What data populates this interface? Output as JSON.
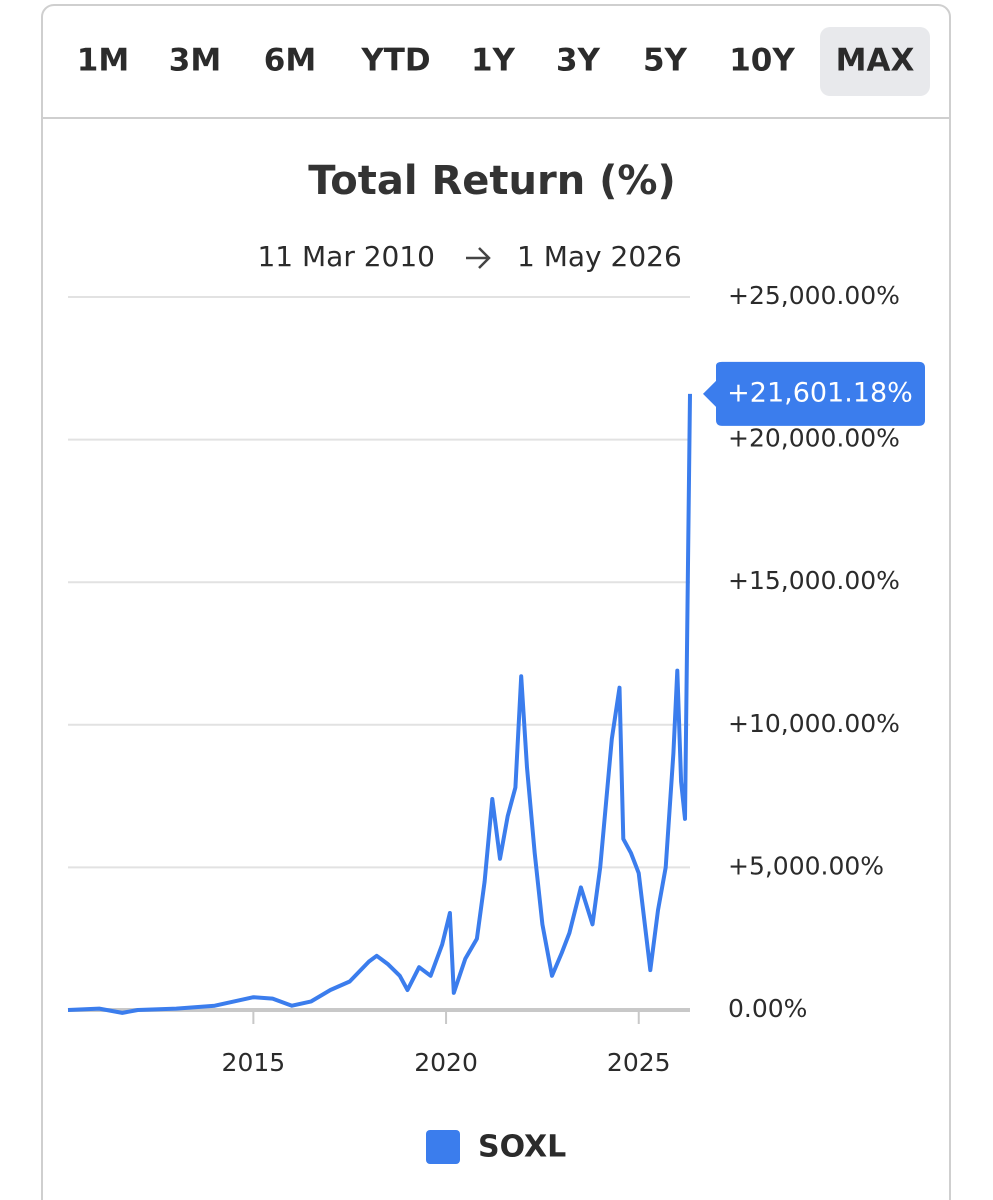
{
  "tabs": [
    {
      "label": "1M"
    },
    {
      "label": "3M"
    },
    {
      "label": "6M"
    },
    {
      "label": "YTD"
    },
    {
      "label": "1Y"
    },
    {
      "label": "3Y"
    },
    {
      "label": "5Y"
    },
    {
      "label": "10Y"
    },
    {
      "label": "MAX",
      "selected": true
    }
  ],
  "chart_data": {
    "type": "line",
    "title": "Total Return (%)",
    "date_range": {
      "start": "11 Mar 2010",
      "end": "1 May 2026"
    },
    "xlim": [
      2010.19,
      2026.33
    ],
    "xticks": [
      2015,
      2020,
      2025
    ],
    "ylim": [
      -500,
      25000
    ],
    "yticks": [
      {
        "value": 0,
        "label": "0.00%"
      },
      {
        "value": 5000,
        "label": "+5,000.00%"
      },
      {
        "value": 10000,
        "label": "+10,000.00%"
      },
      {
        "value": 15000,
        "label": "+15,000.00%"
      },
      {
        "value": 20000,
        "label": "+20,000.00%"
      },
      {
        "value": 25000,
        "label": "+25,000.00%"
      }
    ],
    "grid": true,
    "legend": "bottom",
    "series": [
      {
        "name": "SOXL",
        "color": "#3b7ded",
        "x": [
          2010.19,
          2011.0,
          2011.6,
          2012.0,
          2013.0,
          2014.0,
          2014.5,
          2015.0,
          2015.5,
          2016.0,
          2016.5,
          2017.0,
          2017.5,
          2018.0,
          2018.2,
          2018.5,
          2018.8,
          2019.0,
          2019.3,
          2019.6,
          2019.9,
          2020.1,
          2020.2,
          2020.5,
          2020.8,
          2021.0,
          2021.2,
          2021.4,
          2021.6,
          2021.8,
          2021.95,
          2022.1,
          2022.3,
          2022.5,
          2022.75,
          2023.0,
          2023.2,
          2023.5,
          2023.8,
          2024.0,
          2024.3,
          2024.5,
          2024.6,
          2024.8,
          2025.0,
          2025.3,
          2025.5,
          2025.7,
          2025.9,
          2026.0,
          2026.1,
          2026.2,
          2026.33
        ],
        "values": [
          0,
          50,
          -100,
          0,
          50,
          150,
          300,
          450,
          400,
          150,
          300,
          700,
          1000,
          1700,
          1900,
          1600,
          1200,
          700,
          1500,
          1200,
          2300,
          3400,
          600,
          1800,
          2500,
          4500,
          7400,
          5300,
          6800,
          7800,
          11700,
          8500,
          5500,
          3000,
          1200,
          2000,
          2700,
          4300,
          3000,
          5000,
          9500,
          11300,
          6000,
          5500,
          4800,
          1400,
          3500,
          5000,
          9000,
          11900,
          8000,
          6700,
          21601.18
        ],
        "value_labels": [
          null,
          null,
          null,
          null,
          null,
          null,
          null,
          null,
          null,
          null,
          null,
          null,
          null,
          null,
          null,
          null,
          null,
          null,
          null,
          null,
          null,
          null,
          null,
          null,
          null,
          null,
          null,
          null,
          null,
          null,
          null,
          null,
          null,
          null,
          null,
          null,
          null,
          null,
          null,
          null,
          null,
          null,
          null,
          null,
          null,
          null,
          null,
          null,
          null,
          null,
          null,
          null,
          "+21,601.18%"
        ]
      }
    ]
  }
}
